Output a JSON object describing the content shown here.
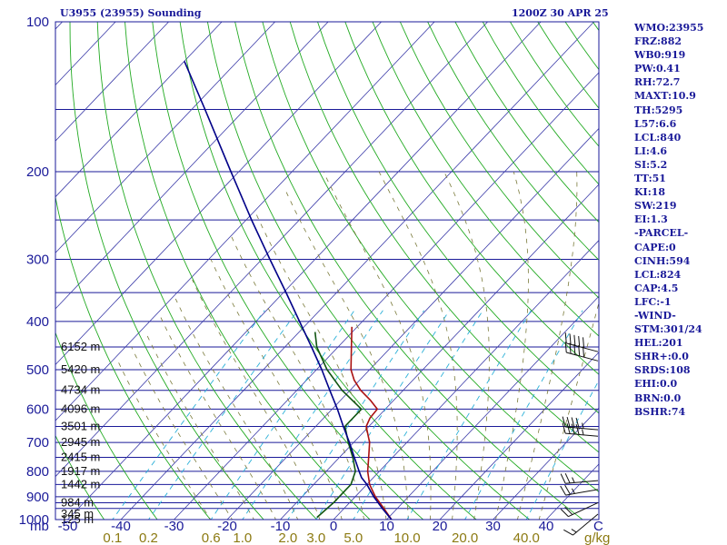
{
  "header": {
    "title_left": "U3955 (23955) Sounding",
    "title_right": "1200Z 30 APR 25"
  },
  "indices": [
    "WMO:23955",
    "FRZ:882",
    "WB0:919",
    "PW:0.41",
    "RH:72.7",
    "MAXT:10.9",
    "TH:5295",
    "L57:6.6",
    "LCL:840",
    "LI:4.6",
    "SI:5.2",
    "TT:51",
    "KI:18",
    "SW:219",
    "EI:1.3",
    "-PARCEL-",
    "CAPE:0",
    "CINH:594",
    "LCL:824",
    "CAP:4.5",
    "LFC:-1",
    "-WIND-",
    "STM:301/24",
    "HEL:201",
    "SHR+:0.0",
    "SRDS:108",
    "EHI:0.0",
    "BRN:0.0",
    "BSHR:74"
  ],
  "colors": {
    "frame": "#1a1a99",
    "isobar": "#1a1a99",
    "isotherm": "#3a3aa8",
    "dry_adiabat": "#22aa22",
    "moist_adiabat": "#7a7a3a",
    "mixing_ratio": "#2ab0d8",
    "temperature": "#aa1111",
    "dewpoint": "#115511",
    "parcel": "#000088",
    "wind_barb": "#111111"
  },
  "chart_data": {
    "type": "line",
    "skew_t": true,
    "y_log_scale": true,
    "pressure_units": "mb",
    "temperature_units": "C",
    "ylim": [
      1000,
      100
    ],
    "xlim": [
      -50,
      50
    ],
    "pressure_tick_labels": [
      "100",
      "200",
      "300",
      "400",
      "500",
      "600",
      "700",
      "800",
      "900",
      "1000"
    ],
    "pressure_ticks": [
      100,
      200,
      300,
      400,
      500,
      600,
      700,
      800,
      900,
      1000
    ],
    "isobar_lines": [
      150,
      200,
      250,
      300,
      350,
      400,
      450,
      500,
      550,
      600,
      650,
      700,
      750,
      800,
      850,
      900,
      925,
      950,
      1000
    ],
    "temperature_tick_labels": [
      "-50",
      "-40",
      "-30",
      "-20",
      "-10",
      "0",
      "10",
      "20",
      "30",
      "40"
    ],
    "temperature_ticks": [
      -50,
      -40,
      -30,
      -20,
      -10,
      0,
      10,
      20,
      30,
      40
    ],
    "y_unit_label": "mb",
    "x_unit_label": "C",
    "mixing_ratio_tick_labels": [
      "0.1",
      "0.2",
      "0.6",
      "1.0",
      "2.0",
      "3.0",
      "5.0",
      "10.0",
      "20.0",
      "40.0"
    ],
    "mixing_ratio_values": [
      0.1,
      0.2,
      0.6,
      1.0,
      2.0,
      3.0,
      5.0,
      10.0,
      20.0,
      40.0
    ],
    "mixing_ratio_unit": "g/kg",
    "height_labels": [
      {
        "p": 1000,
        "label": "125 m"
      },
      {
        "p": 975,
        "label": "345 m"
      },
      {
        "p": 925,
        "label": "984 m"
      },
      {
        "p": 850,
        "label": "1442 m"
      },
      {
        "p": 800,
        "label": "1917 m"
      },
      {
        "p": 750,
        "label": "2415 m"
      },
      {
        "p": 700,
        "label": "2945 m"
      },
      {
        "p": 650,
        "label": "3501 m"
      },
      {
        "p": 600,
        "label": "4096 m"
      },
      {
        "p": 550,
        "label": "4734 m"
      },
      {
        "p": 500,
        "label": "5420 m"
      },
      {
        "p": 450,
        "label": "6152 m"
      }
    ],
    "series": [
      {
        "name": "",
        "role": "temperature",
        "p": [
          1000,
          950,
          900,
          850,
          800,
          750,
          700,
          650,
          625,
          600,
          575,
          550,
          525,
          500,
          450,
          410
        ],
        "t": [
          10.9,
          7.5,
          3.8,
          0.5,
          -2.2,
          -4.5,
          -7.0,
          -10.5,
          -11.3,
          -11.5,
          -14.5,
          -18.0,
          -21.0,
          -23.5,
          -27.5,
          -31.0
        ]
      },
      {
        "name": "",
        "role": "dewpoint",
        "p": [
          990,
          925,
          850,
          800,
          750,
          700,
          650,
          600,
          550,
          500,
          450,
          420
        ],
        "t": [
          -3.5,
          -3.0,
          -3.0,
          -4.5,
          -7.5,
          -11.0,
          -14.5,
          -14.5,
          -21.5,
          -28.0,
          -34.0,
          -37.0
        ]
      },
      {
        "name": "",
        "role": "parcel",
        "p": [
          1000,
          950,
          900,
          850,
          824,
          800,
          750,
          700,
          650,
          600,
          550,
          500,
          450,
          400,
          350,
          300,
          250,
          200,
          150,
          120
        ],
        "t": [
          10.9,
          7.2,
          3.5,
          0.0,
          -2.2,
          -3.8,
          -7.2,
          -10.8,
          -14.8,
          -19.0,
          -23.8,
          -29.0,
          -35.0,
          -41.8,
          -49.5,
          -58.5,
          -69.0,
          -81.5,
          -97.5,
          -110.0
        ]
      }
    ],
    "wind_barbs": [
      {
        "p": 975,
        "dir": 230,
        "speed_kt": 15
      },
      {
        "p": 925,
        "dir": 245,
        "speed_kt": 20
      },
      {
        "p": 870,
        "dir": 260,
        "speed_kt": 25
      },
      {
        "p": 835,
        "dir": 265,
        "speed_kt": 25
      },
      {
        "p": 680,
        "dir": 275,
        "speed_kt": 45
      },
      {
        "p": 660,
        "dir": 275,
        "speed_kt": 45
      },
      {
        "p": 480,
        "dir": 285,
        "speed_kt": 50
      },
      {
        "p": 460,
        "dir": 285,
        "speed_kt": 50
      }
    ]
  }
}
